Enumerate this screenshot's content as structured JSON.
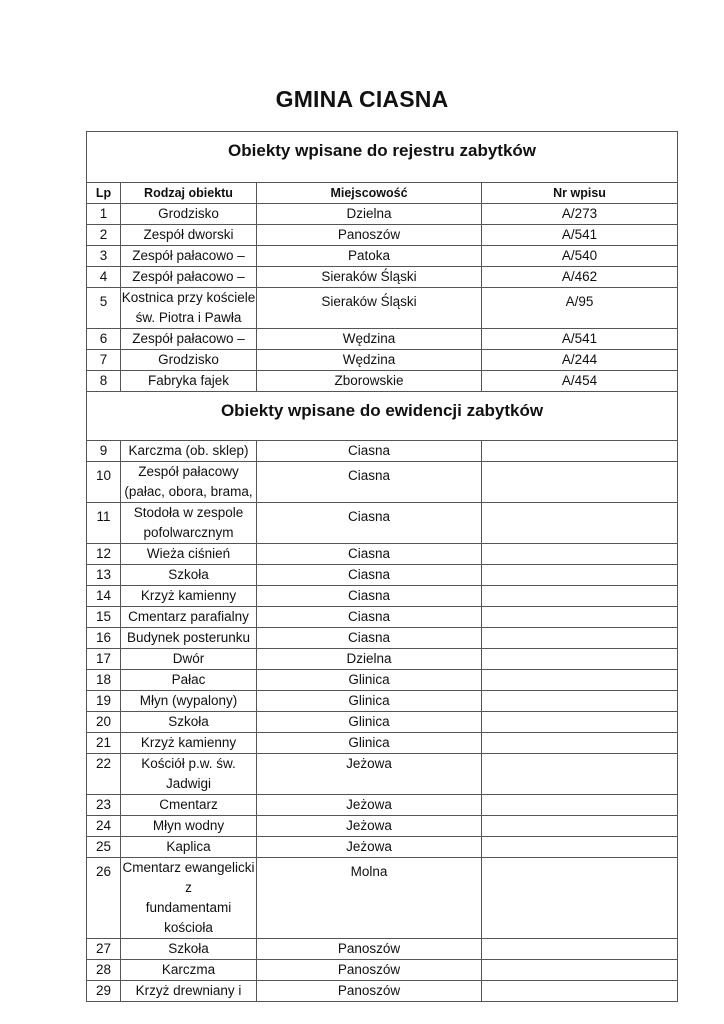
{
  "title": "GMINA CIASNA",
  "section1": {
    "heading": "Obiekty wpisane do rejestru zabytków",
    "columns": [
      "Lp",
      "Rodzaj obiektu",
      "Miejscowość",
      "Nr wpisu"
    ],
    "rows": [
      {
        "lp": "1",
        "type": [
          "Grodzisko"
        ],
        "place": "Dzielna",
        "nr": "A/273"
      },
      {
        "lp": "2",
        "type": [
          "Zespół dworski"
        ],
        "place": "Panoszów",
        "nr": "A/541"
      },
      {
        "lp": "3",
        "type": [
          "Zespół pałacowo –"
        ],
        "place": "Patoka",
        "nr": "A/540"
      },
      {
        "lp": "4",
        "type": [
          "Zespół pałacowo –"
        ],
        "place": "Sieraków Śląski",
        "nr": "A/462"
      },
      {
        "lp": "5",
        "type": [
          "Kostnica przy kościele",
          "św. Piotra i Pawła"
        ],
        "place": "Sieraków Śląski",
        "nr": "A/95"
      },
      {
        "lp": "6",
        "type": [
          "Zespół pałacowo –"
        ],
        "place": "Wędzina",
        "nr": "A/541"
      },
      {
        "lp": "7",
        "type": [
          "Grodzisko"
        ],
        "place": "Wędzina",
        "nr": "A/244"
      },
      {
        "lp": "8",
        "type": [
          "Fabryka fajek"
        ],
        "place": "Zborowskie",
        "nr": "A/454"
      }
    ]
  },
  "section2": {
    "heading": "Obiekty wpisane do ewidencji zabytków",
    "rows": [
      {
        "lp": "9",
        "type": [
          "Karczma (ob. sklep)"
        ],
        "place": "Ciasna",
        "nr": ""
      },
      {
        "lp": "10",
        "type": [
          "Zespół pałacowy",
          "(pałac, obora, brama,"
        ],
        "place": "Ciasna",
        "nr": ""
      },
      {
        "lp": "11",
        "type": [
          "Stodoła w zespole",
          "pofolwarcznym"
        ],
        "place": "Ciasna",
        "nr": ""
      },
      {
        "lp": "12",
        "type": [
          "Wieża ciśnień"
        ],
        "place": "Ciasna",
        "nr": ""
      },
      {
        "lp": "13",
        "type": [
          "Szkoła"
        ],
        "place": "Ciasna",
        "nr": ""
      },
      {
        "lp": "14",
        "type": [
          "Krzyż kamienny"
        ],
        "place": "Ciasna",
        "nr": ""
      },
      {
        "lp": "15",
        "type": [
          "Cmentarz parafialny"
        ],
        "place": "Ciasna",
        "nr": ""
      },
      {
        "lp": "16",
        "type": [
          "Budynek posterunku"
        ],
        "place": "Ciasna",
        "nr": ""
      },
      {
        "lp": "17",
        "type": [
          "Dwór"
        ],
        "place": "Dzielna",
        "nr": ""
      },
      {
        "lp": "18",
        "type": [
          "Pałac"
        ],
        "place": "Glinica",
        "nr": ""
      },
      {
        "lp": "19",
        "type": [
          "Młyn (wypalony)"
        ],
        "place": "Glinica",
        "nr": ""
      },
      {
        "lp": "20",
        "type": [
          "Szkoła"
        ],
        "place": "Glinica",
        "nr": ""
      },
      {
        "lp": "21",
        "type": [
          "Krzyż kamienny"
        ],
        "place": "Glinica",
        "nr": ""
      },
      {
        "lp": "22",
        "type": [
          "Kościół p.w. św. Jadwigi"
        ],
        "place": "Jeżowa",
        "nr": ""
      },
      {
        "lp": "23",
        "type": [
          "Cmentarz"
        ],
        "place": "Jeżowa",
        "nr": ""
      },
      {
        "lp": "24",
        "type": [
          "Młyn wodny"
        ],
        "place": "Jeżowa",
        "nr": ""
      },
      {
        "lp": "25",
        "type": [
          "Kaplica"
        ],
        "place": "Jeżowa",
        "nr": ""
      },
      {
        "lp": "26",
        "type": [
          "Cmentarz ewangelicki z",
          "fundamentami kościoła"
        ],
        "place": "Molna",
        "nr": ""
      },
      {
        "lp": "27",
        "type": [
          "Szkoła"
        ],
        "place": "Panoszów",
        "nr": ""
      },
      {
        "lp": "28",
        "type": [
          "Karczma"
        ],
        "place": "Panoszów",
        "nr": ""
      },
      {
        "lp": "29",
        "type": [
          "Krzyż drewniany i"
        ],
        "place": "Panoszów",
        "nr": ""
      }
    ]
  }
}
